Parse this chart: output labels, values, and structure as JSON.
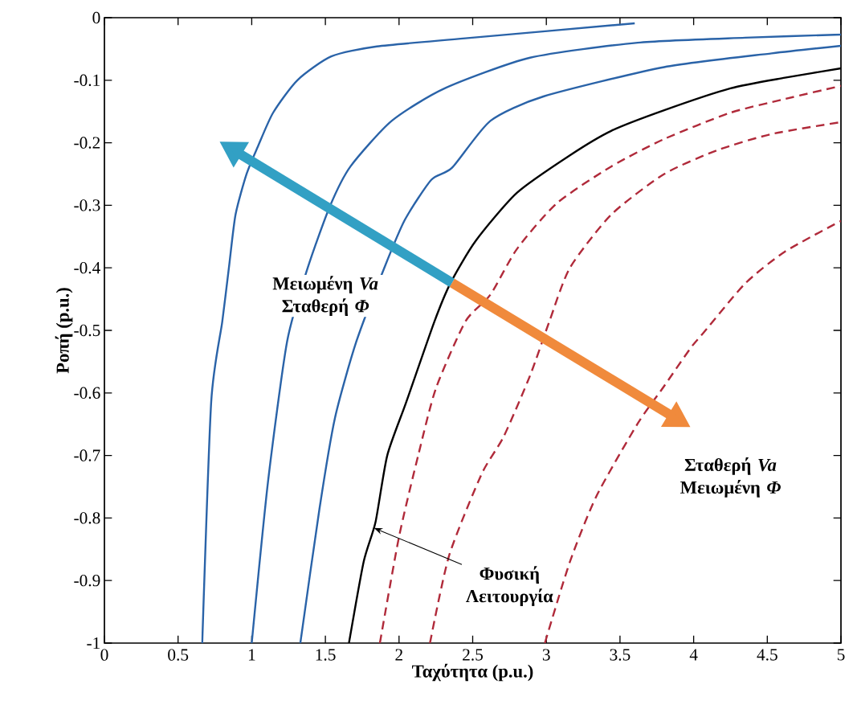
{
  "chart_data": {
    "type": "line",
    "xlabel": "Ταχύτητα (p.u.)",
    "ylabel": "Ροπή (p.u.)",
    "xlim": [
      0,
      5
    ],
    "ylim": [
      -1,
      0
    ],
    "xticks": [
      0,
      0.5,
      1,
      1.5,
      2,
      2.5,
      3,
      3.5,
      4,
      4.5,
      5
    ],
    "yticks": [
      0,
      -0.1,
      -0.2,
      -0.3,
      -0.4,
      -0.5,
      -0.6,
      -0.7,
      -0.8,
      -0.9,
      -1
    ],
    "grid": false,
    "marker": "none",
    "series": [
      {
        "color": "#2a63a8",
        "line_style": "solid",
        "x": [
          0.664,
          0.725,
          0.8,
          0.845,
          0.89,
          0.965,
          1.04,
          1.145,
          1.31,
          1.54,
          1.85,
          2.45,
          3.6
        ],
        "values": [
          -1,
          -0.614,
          -0.486,
          -0.4,
          -0.315,
          -0.25,
          -0.207,
          -0.152,
          -0.1,
          -0.062,
          -0.046,
          -0.033,
          -0.009
        ]
      },
      {
        "color": "#2a63a8",
        "line_style": "solid",
        "x": [
          1.0,
          1.11,
          1.24,
          1.38,
          1.53,
          1.67,
          1.95,
          2.31,
          2.89,
          3.62,
          4.35,
          5.0
        ],
        "values": [
          -1,
          -0.743,
          -0.518,
          -0.4,
          -0.302,
          -0.238,
          -0.165,
          -0.113,
          -0.064,
          -0.04,
          -0.032,
          -0.027
        ]
      },
      {
        "color": "#2a63a8",
        "line_style": "solid",
        "x": [
          1.33,
          1.46,
          1.565,
          1.71,
          1.9,
          2.04,
          2.22,
          2.36,
          2.62,
          2.98,
          3.8,
          4.53,
          5.0
        ],
        "values": [
          -1,
          -0.785,
          -0.64,
          -0.518,
          -0.4,
          -0.323,
          -0.259,
          -0.24,
          -0.165,
          -0.126,
          -0.079,
          -0.057,
          -0.045
        ]
      },
      {
        "color": "#000000",
        "line_style": "solid",
        "x": [
          1.66,
          1.76,
          1.84,
          1.92,
          2.05,
          2.24,
          2.35,
          2.52,
          2.8,
          3.16,
          3.44,
          3.8,
          4.25,
          4.62,
          5.0
        ],
        "values": [
          -1,
          -0.87,
          -0.807,
          -0.7,
          -0.614,
          -0.486,
          -0.424,
          -0.357,
          -0.28,
          -0.22,
          -0.181,
          -0.148,
          -0.113,
          -0.096,
          -0.081
        ]
      },
      {
        "color": "#b02a3a",
        "line_style": "dashed",
        "x": [
          1.87,
          2.0,
          2.13,
          2.25,
          2.45,
          2.62,
          2.8,
          3.07,
          3.44,
          3.8,
          4.25,
          4.62,
          5.0
        ],
        "values": [
          -1,
          -0.83,
          -0.7,
          -0.593,
          -0.486,
          -0.443,
          -0.37,
          -0.297,
          -0.238,
          -0.194,
          -0.152,
          -0.13,
          -0.109
        ]
      },
      {
        "color": "#b02a3a",
        "line_style": "dashed",
        "x": [
          2.21,
          2.34,
          2.56,
          2.71,
          2.89,
          3.02,
          3.16,
          3.44,
          3.8,
          4.16,
          4.53,
          5.0
        ],
        "values": [
          -1,
          -0.86,
          -0.73,
          -0.67,
          -0.572,
          -0.486,
          -0.4,
          -0.315,
          -0.25,
          -0.212,
          -0.186,
          -0.167
        ]
      },
      {
        "color": "#b02a3a",
        "line_style": "dashed",
        "x": [
          2.99,
          3.16,
          3.34,
          3.62,
          3.8,
          3.98,
          4.07,
          4.35,
          4.62,
          5.0
        ],
        "values": [
          -1,
          -0.87,
          -0.765,
          -0.649,
          -0.589,
          -0.528,
          -0.503,
          -0.425,
          -0.374,
          -0.325
        ]
      }
    ],
    "annotations": [
      "Μειωμένη *Va* Σταθερή *Φ*",
      "Σταθερή *Va* Μειωμένη *Φ*",
      {
        "text": "Φυσική Λειτουργία",
        "x": 1.83,
        "y": -0.816
      }
    ]
  }
}
